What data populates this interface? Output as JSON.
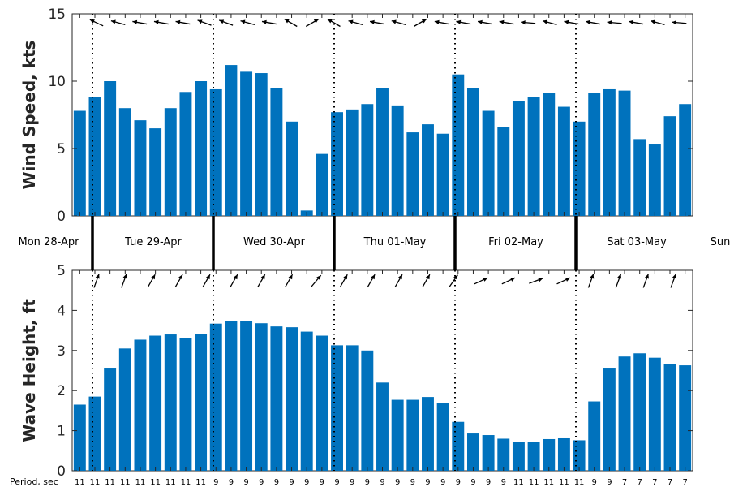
{
  "chart_data": [
    {
      "type": "bar",
      "ylabel": "Wind Speed, kts",
      "ylim": [
        0,
        15
      ],
      "yticks": [
        0,
        5,
        10,
        15
      ],
      "bar_color": "#0072BD",
      "values": [
        7.8,
        8.8,
        10.0,
        8.0,
        7.1,
        6.5,
        8.0,
        9.2,
        10.0,
        9.4,
        11.2,
        10.7,
        10.6,
        9.5,
        7.0,
        0.4,
        4.6,
        7.7,
        7.9,
        8.3,
        9.5,
        8.2,
        6.2,
        6.8,
        6.1,
        10.5,
        9.5,
        7.8,
        6.6,
        8.5,
        8.8,
        9.1,
        8.1,
        7.0,
        9.1,
        9.4,
        9.3,
        5.7,
        5.3,
        7.4,
        8.3
      ],
      "direction_arrows": [
        155,
        165,
        170,
        170,
        170,
        160,
        160,
        165,
        170,
        150,
        30,
        150,
        165,
        170,
        165,
        30,
        170,
        170,
        170,
        170,
        175,
        165,
        170,
        170,
        175,
        170,
        165,
        175
      ]
    },
    {
      "type": "bar",
      "ylabel": "Wave Height, ft",
      "ylim": [
        0,
        5
      ],
      "yticks": [
        0,
        1,
        2,
        3,
        4,
        5
      ],
      "bar_color": "#0072BD",
      "values": [
        1.65,
        1.85,
        2.55,
        3.05,
        3.27,
        3.37,
        3.4,
        3.3,
        3.42,
        3.67,
        3.74,
        3.73,
        3.68,
        3.6,
        3.58,
        3.47,
        3.37,
        3.13,
        3.13,
        3.0,
        2.2,
        1.77,
        1.77,
        1.84,
        1.68,
        1.22,
        0.93,
        0.89,
        0.8,
        0.71,
        0.72,
        0.79,
        0.81,
        0.76,
        1.73,
        2.55,
        2.85,
        2.93,
        2.82,
        2.67,
        2.63
      ],
      "direction_arrows": [
        70,
        70,
        60,
        60,
        60,
        60,
        60,
        60,
        50,
        60,
        60,
        60,
        60,
        55,
        25,
        25,
        20,
        25,
        70,
        70,
        70,
        70
      ]
    }
  ],
  "days": [
    "Mon 28-Apr",
    "Tue 29-Apr",
    "Wed 30-Apr",
    "Thu 01-May",
    "Fri 02-May",
    "Sat 03-May",
    "Sun"
  ],
  "period_label": "Period, sec",
  "periods": [
    "11",
    "11",
    "11",
    "11",
    "11",
    "11",
    "11",
    "11",
    "11",
    "9",
    "9",
    "9",
    "9",
    "9",
    "9",
    "9",
    "9",
    "9",
    "9",
    "9",
    "9",
    "9",
    "9",
    "9",
    "9",
    "9",
    "9",
    "9",
    "9",
    "11",
    "11",
    "11",
    "11",
    "11",
    "9",
    "9",
    "7",
    "7",
    "7",
    "7",
    "7"
  ]
}
